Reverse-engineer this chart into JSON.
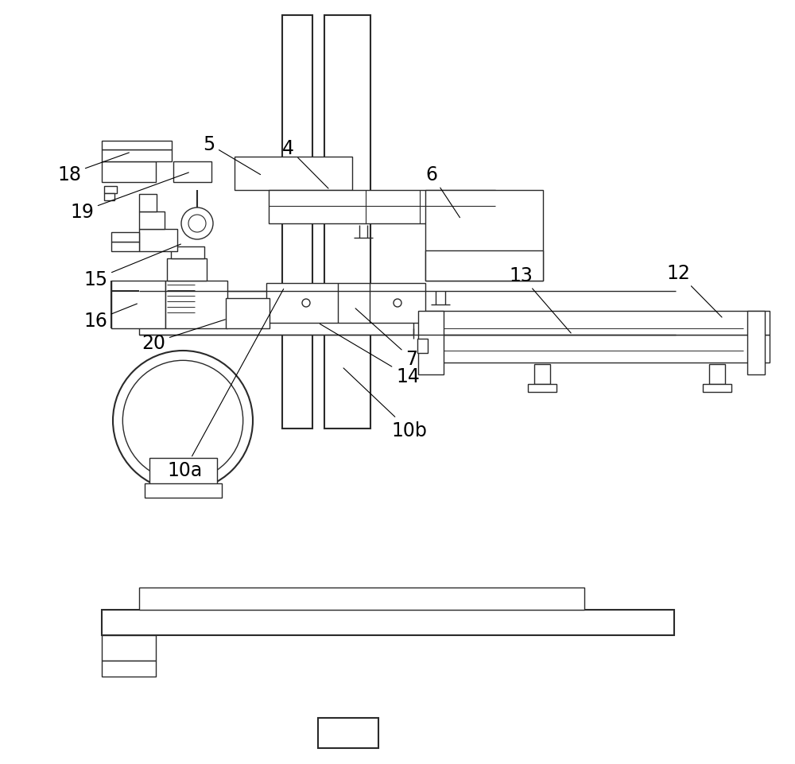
{
  "bg_color": "#ffffff",
  "line_color": "#2a2a2a",
  "lw": 1.0,
  "lw2": 1.5,
  "lw3": 2.0,
  "fig_width": 10.0,
  "fig_height": 9.62,
  "label_fontsize": 17
}
